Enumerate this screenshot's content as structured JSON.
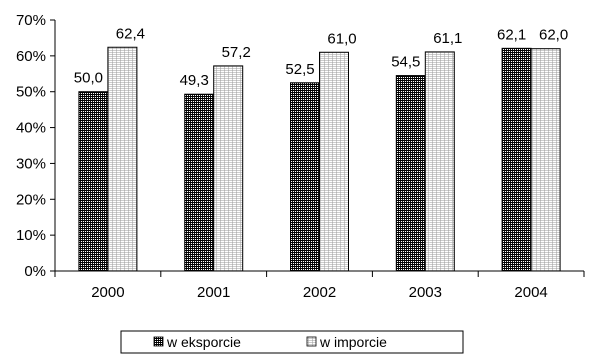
{
  "chart_data": {
    "type": "bar",
    "categories": [
      "2000",
      "2001",
      "2002",
      "2003",
      "2004"
    ],
    "series": [
      {
        "name": "w eksporcie",
        "values": [
          50.0,
          49.3,
          52.5,
          54.5,
          62.1
        ],
        "labels": [
          "50,0",
          "49,3",
          "52,5",
          "54,5",
          "62,1"
        ]
      },
      {
        "name": "w imporcie",
        "values": [
          62.4,
          57.2,
          61.0,
          61.1,
          62.0
        ],
        "labels": [
          "62,4",
          "57,2",
          "61,0",
          "61,1",
          "62,0"
        ]
      }
    ],
    "yticks": [
      "0%",
      "10%",
      "20%",
      "30%",
      "40%",
      "50%",
      "60%",
      "70%"
    ],
    "ylim": [
      0,
      70
    ],
    "grid": false,
    "legend_position": "bottom"
  }
}
